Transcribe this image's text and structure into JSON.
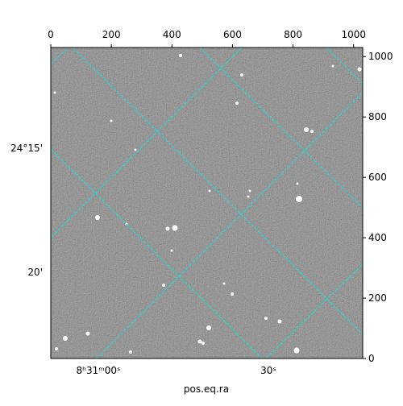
{
  "chart_data": {
    "type": "image",
    "xlabel": "pos.eq.ra",
    "xlim": [
      0,
      1030
    ],
    "xticks": [
      0,
      200,
      400,
      600,
      800,
      1000
    ],
    "ylim": [
      0,
      1030
    ],
    "yticks": [
      0,
      200,
      400,
      600,
      800,
      1000
    ],
    "ra_ticks": [
      "8ʰ31ᵐ00ˢ",
      "30ˢ"
    ],
    "dec_ticks": [
      "24°15'",
      "20'"
    ],
    "grid_color": "#00e5e5"
  }
}
